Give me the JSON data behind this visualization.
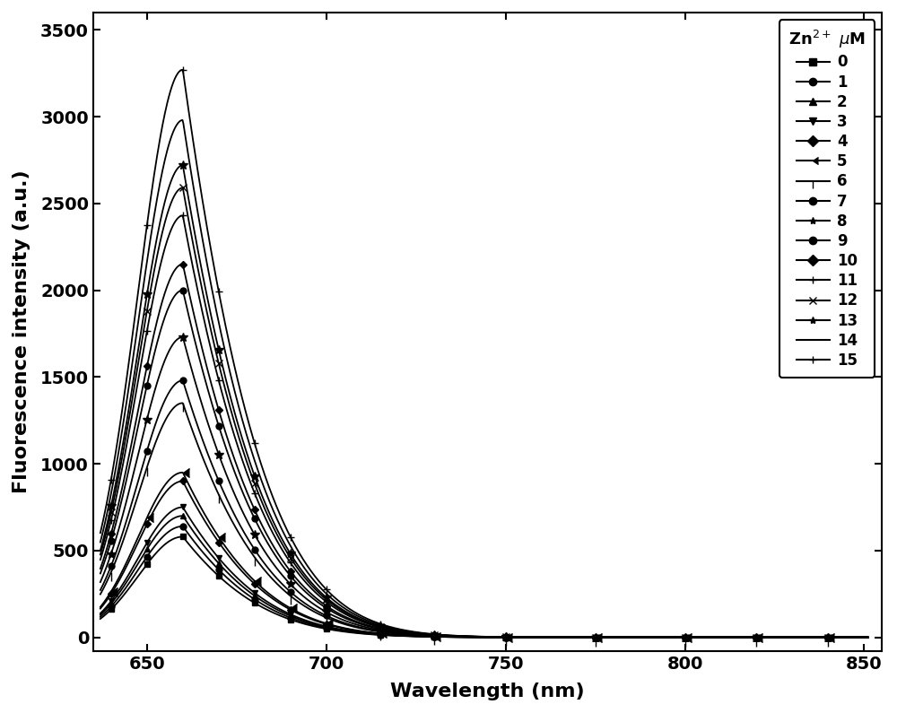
{
  "title": "",
  "xlabel": "Wavelength (nm)",
  "ylabel": "Fluorescence intensity (a.u.)",
  "xlim": [
    635,
    855
  ],
  "ylim": [
    -80,
    3600
  ],
  "xticks": [
    650,
    700,
    750,
    800,
    850
  ],
  "yticks": [
    0,
    500,
    1000,
    1500,
    2000,
    2500,
    3000,
    3500
  ],
  "legend_title": "Zn$^{2+}$ $\\mu$M",
  "series_labels": [
    "0",
    "1",
    "2",
    "3",
    "4",
    "5",
    "6",
    "7",
    "8",
    "9",
    "10",
    "11",
    "12",
    "13",
    "14",
    "15"
  ],
  "peak_wavelength": 660,
  "peak_values": [
    580,
    640,
    700,
    750,
    900,
    950,
    1350,
    1480,
    1730,
    2000,
    2150,
    2430,
    2590,
    2720,
    2980,
    3270
  ],
  "color": "#000000",
  "linewidth": 1.3,
  "background_color": "#ffffff",
  "legend_fontsize": 12,
  "axis_fontsize": 16,
  "tick_fontsize": 14
}
